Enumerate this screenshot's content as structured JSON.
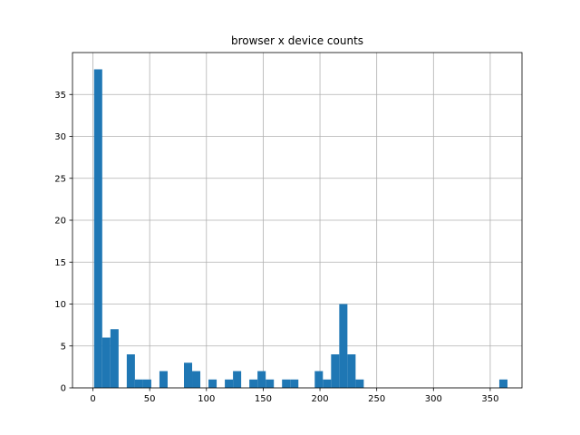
{
  "chart_data": {
    "type": "bar",
    "title": "browser x device counts",
    "xlabel": "",
    "ylabel": "",
    "bin_width": 7.2,
    "xlim": [
      -18,
      378
    ],
    "ylim": [
      0,
      40
    ],
    "xticks": [
      0,
      50,
      100,
      150,
      200,
      250,
      300,
      350
    ],
    "yticks": [
      0,
      5,
      10,
      15,
      20,
      25,
      30,
      35
    ],
    "grid": true,
    "bar_color": "#1f77b4",
    "bins": [
      {
        "x": 1,
        "count": 38
      },
      {
        "x": 8.2,
        "count": 6
      },
      {
        "x": 15.4,
        "count": 7
      },
      {
        "x": 29.8,
        "count": 4
      },
      {
        "x": 37,
        "count": 1
      },
      {
        "x": 44.2,
        "count": 1
      },
      {
        "x": 58.6,
        "count": 2
      },
      {
        "x": 80.2,
        "count": 3
      },
      {
        "x": 87.4,
        "count": 2
      },
      {
        "x": 101.8,
        "count": 1
      },
      {
        "x": 116.2,
        "count": 1
      },
      {
        "x": 123.4,
        "count": 2
      },
      {
        "x": 137.8,
        "count": 1
      },
      {
        "x": 145,
        "count": 2
      },
      {
        "x": 152.2,
        "count": 1
      },
      {
        "x": 166.6,
        "count": 1
      },
      {
        "x": 173.8,
        "count": 1
      },
      {
        "x": 195.4,
        "count": 2
      },
      {
        "x": 202.6,
        "count": 1
      },
      {
        "x": 209.8,
        "count": 4
      },
      {
        "x": 217,
        "count": 10
      },
      {
        "x": 224.2,
        "count": 4
      },
      {
        "x": 231.4,
        "count": 1
      },
      {
        "x": 358,
        "count": 1
      }
    ]
  }
}
